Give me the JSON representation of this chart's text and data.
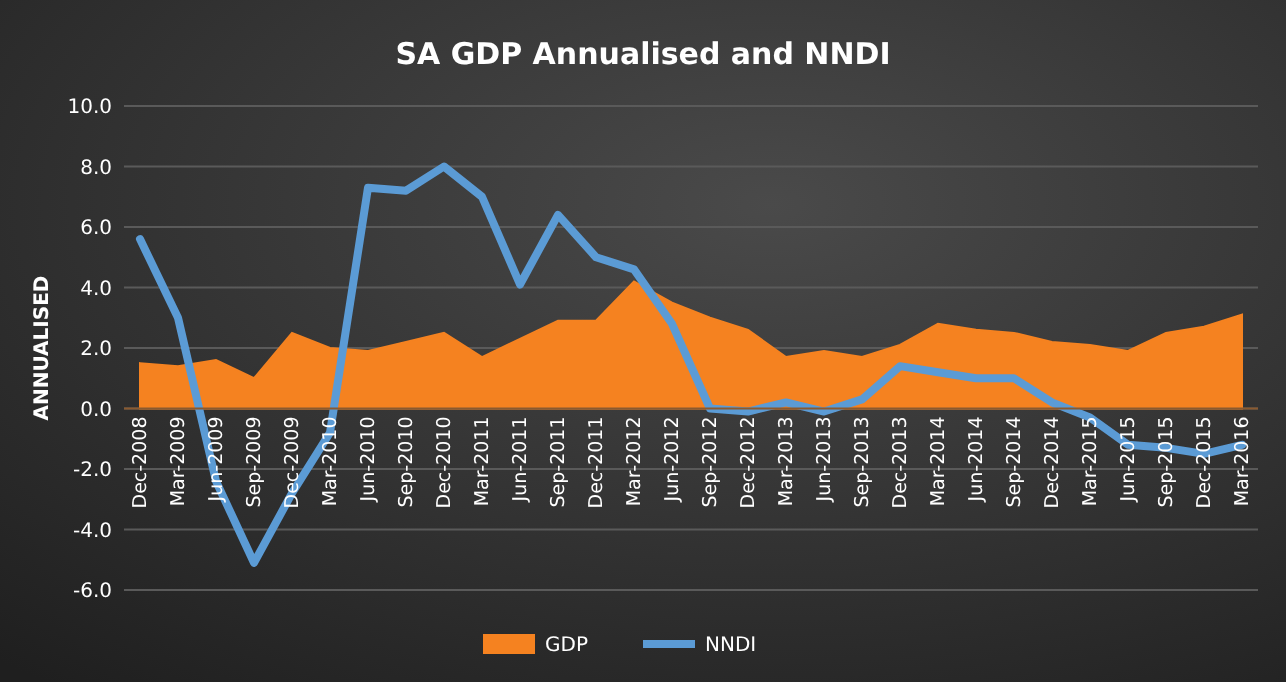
{
  "chart_data": {
    "type": "area",
    "title": "SA GDP Annualised  and NNDI",
    "ylabel": "ANNUALISED",
    "categories": [
      "Dec-2008",
      "Mar-2009",
      "Jun-2009",
      "Sep-2009",
      "Dec-2009",
      "Mar-2010",
      "Jun-2010",
      "Sep-2010",
      "Dec-2010",
      "Mar-2011",
      "Jun-2011",
      "Sep-2011",
      "Dec-2011",
      "Mar-2012",
      "Jun-2012",
      "Sep-2012",
      "Dec-2012",
      "Mar-2013",
      "Jun-2013",
      "Sep-2013",
      "Dec-2013",
      "Mar-2014",
      "Jun-2014",
      "Sep-2014",
      "Dec-2014",
      "Mar-2015",
      "Jun-2015",
      "Sep-2015",
      "Dec-2015",
      "Mar-2016"
    ],
    "series": [
      {
        "name": "GDP",
        "color": "#f58220",
        "values": [
          1.5,
          1.4,
          1.6,
          1.0,
          2.5,
          2.0,
          1.9,
          2.2,
          2.5,
          1.7,
          2.3,
          2.9,
          2.9,
          4.2,
          3.5,
          3.0,
          2.6,
          1.7,
          1.9,
          1.7,
          2.1,
          2.8,
          2.6,
          2.5,
          2.2,
          2.1,
          1.9,
          2.5,
          2.7,
          3.1
        ]
      },
      {
        "name": "NNDI",
        "type": "line",
        "color": "#5b9bd5",
        "values": [
          5.6,
          3.0,
          -2.4,
          -5.1,
          -2.8,
          -0.8,
          7.3,
          7.2,
          8.0,
          7.0,
          4.1,
          6.4,
          5.0,
          4.6,
          2.8,
          0.0,
          -0.1,
          0.2,
          -0.1,
          0.3,
          1.4,
          1.2,
          1.0,
          1.0,
          0.2,
          -0.3,
          -1.2,
          -1.3,
          -1.5,
          -1.2
        ]
      }
    ],
    "ylim": [
      -6,
      10
    ],
    "yticks": [
      {
        "value": -6,
        "label": "-6.0"
      },
      {
        "value": -4,
        "label": "-4.0"
      },
      {
        "value": -2,
        "label": "-2.0"
      },
      {
        "value": 0,
        "label": "0.0"
      },
      {
        "value": 2,
        "label": "2.0"
      },
      {
        "value": 4,
        "label": "4.0"
      },
      {
        "value": 6,
        "label": "6.0"
      },
      {
        "value": 8,
        "label": "8.0"
      },
      {
        "value": 10,
        "label": "10.0"
      }
    ],
    "grid": "y",
    "legend": "bottom",
    "marker": "none",
    "line_style": "solid"
  }
}
